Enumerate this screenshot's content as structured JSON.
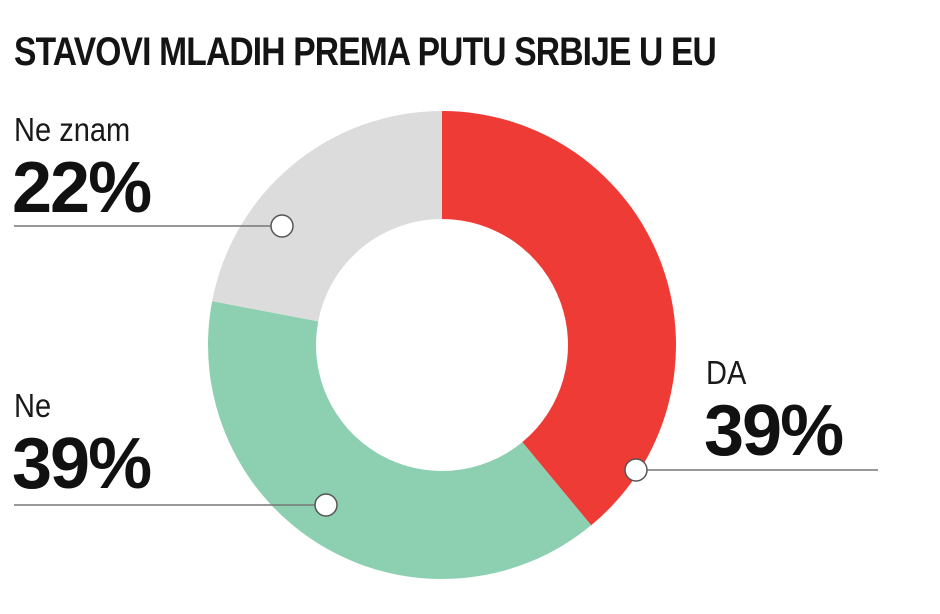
{
  "title": "STAVOVI MLADIH PREMA PUTU SRBIJE U EU",
  "chart_data": {
    "type": "pie",
    "donut": true,
    "slices": [
      {
        "label": "DA",
        "value": 39,
        "value_label": "39%",
        "color": "#ee3b36"
      },
      {
        "label": "Ne",
        "value": 39,
        "value_label": "39%",
        "color": "#8dd0b1"
      },
      {
        "label": "Ne znam",
        "value": 22,
        "value_label": "22%",
        "color": "#dcdcdc"
      }
    ],
    "start": "12 o'clock",
    "direction": "clockwise"
  }
}
